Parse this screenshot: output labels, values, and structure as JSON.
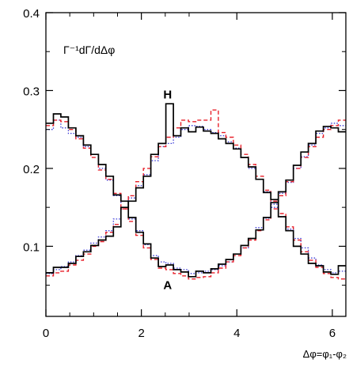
{
  "chart_data": {
    "type": "line",
    "step": true,
    "xlim": [
      0,
      6.283
    ],
    "ylim": [
      0.01,
      0.4
    ],
    "x_ticks": [
      {
        "value": 0,
        "label": "0"
      },
      {
        "value": 2,
        "label": "2"
      },
      {
        "value": 4,
        "label": "4"
      },
      {
        "value": 6,
        "label": "6"
      }
    ],
    "y_ticks": [
      {
        "value": 0.1,
        "label": "0.1"
      },
      {
        "value": 0.2,
        "label": "0.2"
      },
      {
        "value": 0.3,
        "label": "0.3"
      },
      {
        "value": 0.4,
        "label": "0.4"
      }
    ],
    "ylabel": "Γ⁻¹dΓ/dΔφ",
    "xlabel": "Δφ=φ₁-φ₂",
    "annotations": [
      {
        "text": "H",
        "x": 2.55,
        "y": 0.29
      },
      {
        "text": "A",
        "x": 2.55,
        "y": 0.045
      }
    ],
    "grid": false,
    "series": [
      {
        "style": "solid",
        "color": "#000000",
        "x": [
          0.0,
          0.157,
          0.314,
          0.471,
          0.628,
          0.785,
          0.942,
          1.1,
          1.257,
          1.414,
          1.571,
          1.728,
          1.885,
          2.042,
          2.199,
          2.356,
          2.513,
          2.67,
          2.827,
          2.985,
          3.142,
          3.299,
          3.456,
          3.613,
          3.77,
          3.927,
          4.084,
          4.241,
          4.398,
          4.555,
          4.712,
          4.869,
          5.027,
          5.184,
          5.341,
          5.498,
          5.655,
          5.812,
          5.969,
          6.126,
          6.283
        ],
        "y": [
          0.258,
          0.27,
          0.266,
          0.252,
          0.242,
          0.23,
          0.218,
          0.205,
          0.19,
          0.166,
          0.158,
          0.137,
          0.118,
          0.103,
          0.085,
          0.074,
          0.076,
          0.07,
          0.067,
          0.061,
          0.068,
          0.066,
          0.071,
          0.077,
          0.083,
          0.09,
          0.101,
          0.11,
          0.121,
          0.137,
          0.156,
          0.17,
          0.185,
          0.204,
          0.221,
          0.232,
          0.248,
          0.254,
          0.252,
          0.247,
          0.247
        ]
      },
      {
        "style": "solid",
        "color": "#000000",
        "x": [
          0.0,
          0.157,
          0.314,
          0.471,
          0.628,
          0.785,
          0.942,
          1.1,
          1.257,
          1.414,
          1.571,
          1.728,
          1.885,
          2.042,
          2.199,
          2.356,
          2.513,
          2.67,
          2.827,
          2.985,
          3.142,
          3.299,
          3.456,
          3.613,
          3.77,
          3.927,
          4.084,
          4.241,
          4.398,
          4.555,
          4.712,
          4.869,
          5.027,
          5.184,
          5.341,
          5.498,
          5.655,
          5.812,
          5.969,
          6.126,
          6.283
        ],
        "y": [
          0.066,
          0.073,
          0.073,
          0.078,
          0.087,
          0.093,
          0.101,
          0.108,
          0.113,
          0.125,
          0.15,
          0.158,
          0.175,
          0.19,
          0.218,
          0.232,
          0.283,
          0.242,
          0.252,
          0.247,
          0.253,
          0.248,
          0.245,
          0.238,
          0.232,
          0.225,
          0.214,
          0.202,
          0.186,
          0.169,
          0.16,
          0.138,
          0.12,
          0.1,
          0.09,
          0.078,
          0.075,
          0.067,
          0.064,
          0.075,
          0.075
        ]
      },
      {
        "style": "dashed",
        "color": "#e8202a",
        "x": [
          0.0,
          0.157,
          0.314,
          0.471,
          0.628,
          0.785,
          0.942,
          1.1,
          1.257,
          1.414,
          1.571,
          1.728,
          1.885,
          2.042,
          2.199,
          2.356,
          2.513,
          2.67,
          2.827,
          2.985,
          3.142,
          3.299,
          3.456,
          3.613,
          3.77,
          3.927,
          4.084,
          4.241,
          4.398,
          4.555,
          4.712,
          4.869,
          5.027,
          5.184,
          5.341,
          5.498,
          5.655,
          5.812,
          5.969,
          6.126,
          6.283
        ],
        "y": [
          0.255,
          0.262,
          0.26,
          0.25,
          0.238,
          0.226,
          0.214,
          0.198,
          0.186,
          0.168,
          0.148,
          0.132,
          0.114,
          0.098,
          0.083,
          0.072,
          0.07,
          0.065,
          0.062,
          0.058,
          0.06,
          0.061,
          0.066,
          0.072,
          0.08,
          0.088,
          0.098,
          0.108,
          0.12,
          0.134,
          0.148,
          0.165,
          0.183,
          0.2,
          0.214,
          0.228,
          0.24,
          0.25,
          0.255,
          0.262,
          0.255
        ]
      },
      {
        "style": "dashed",
        "color": "#e8202a",
        "x": [
          0.0,
          0.157,
          0.314,
          0.471,
          0.628,
          0.785,
          0.942,
          1.1,
          1.257,
          1.414,
          1.571,
          1.728,
          1.885,
          2.042,
          2.199,
          2.356,
          2.513,
          2.67,
          2.827,
          2.985,
          3.142,
          3.299,
          3.456,
          3.613,
          3.77,
          3.927,
          4.084,
          4.241,
          4.398,
          4.555,
          4.712,
          4.869,
          5.027,
          5.184,
          5.341,
          5.498,
          5.655,
          5.812,
          5.969,
          6.126,
          6.283
        ],
        "y": [
          0.062,
          0.066,
          0.068,
          0.076,
          0.082,
          0.09,
          0.1,
          0.106,
          0.118,
          0.128,
          0.148,
          0.165,
          0.183,
          0.2,
          0.215,
          0.228,
          0.24,
          0.252,
          0.262,
          0.26,
          0.262,
          0.262,
          0.275,
          0.246,
          0.24,
          0.23,
          0.218,
          0.205,
          0.19,
          0.172,
          0.158,
          0.142,
          0.125,
          0.108,
          0.093,
          0.082,
          0.073,
          0.065,
          0.06,
          0.058,
          0.058
        ]
      },
      {
        "style": "dotted",
        "color": "#3a3ad8",
        "x": [
          0.0,
          0.157,
          0.314,
          0.471,
          0.628,
          0.785,
          0.942,
          1.1,
          1.257,
          1.414,
          1.571,
          1.728,
          1.885,
          2.042,
          2.199,
          2.356,
          2.513,
          2.67,
          2.827,
          2.985,
          3.142,
          3.299,
          3.456,
          3.613,
          3.77,
          3.927,
          4.084,
          4.241,
          4.398,
          4.555,
          4.712,
          4.869,
          5.027,
          5.184,
          5.341,
          5.498,
          5.655,
          5.812,
          5.969,
          6.126,
          6.283
        ],
        "y": [
          0.25,
          0.262,
          0.252,
          0.245,
          0.24,
          0.228,
          0.218,
          0.2,
          0.185,
          0.165,
          0.15,
          0.135,
          0.12,
          0.102,
          0.088,
          0.08,
          0.078,
          0.072,
          0.07,
          0.065,
          0.066,
          0.068,
          0.07,
          0.075,
          0.08,
          0.09,
          0.098,
          0.11,
          0.124,
          0.136,
          0.15,
          0.168,
          0.182,
          0.2,
          0.215,
          0.23,
          0.245,
          0.252,
          0.258,
          0.255,
          0.255
        ]
      },
      {
        "style": "dotted",
        "color": "#3a3ad8",
        "x": [
          0.0,
          0.157,
          0.314,
          0.471,
          0.628,
          0.785,
          0.942,
          1.1,
          1.257,
          1.414,
          1.571,
          1.728,
          1.885,
          2.042,
          2.199,
          2.356,
          2.513,
          2.67,
          2.827,
          2.985,
          3.142,
          3.299,
          3.456,
          3.613,
          3.77,
          3.927,
          4.084,
          4.241,
          4.398,
          4.555,
          4.712,
          4.869,
          5.027,
          5.184,
          5.341,
          5.498,
          5.655,
          5.812,
          5.969,
          6.126,
          6.283
        ],
        "y": [
          0.065,
          0.07,
          0.074,
          0.08,
          0.088,
          0.095,
          0.104,
          0.112,
          0.12,
          0.135,
          0.148,
          0.162,
          0.178,
          0.192,
          0.21,
          0.228,
          0.232,
          0.24,
          0.25,
          0.255,
          0.254,
          0.25,
          0.246,
          0.242,
          0.234,
          0.226,
          0.214,
          0.2,
          0.186,
          0.17,
          0.154,
          0.138,
          0.122,
          0.11,
          0.098,
          0.085,
          0.076,
          0.07,
          0.066,
          0.068,
          0.068
        ]
      }
    ]
  }
}
